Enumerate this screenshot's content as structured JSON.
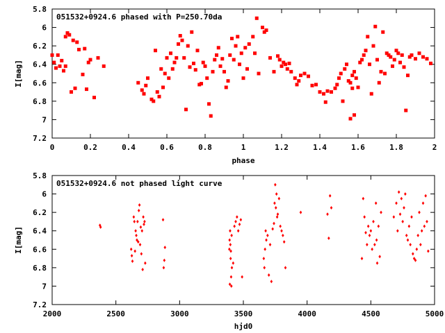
{
  "chart_data": [
    {
      "type": "scatter",
      "title": "051532+0924.6 phased with P=250.70da",
      "xlabel": "phase",
      "ylabel": "I[mag]",
      "xlim": [
        0,
        2
      ],
      "ylim": [
        7.2,
        5.8
      ],
      "y_inverted": true,
      "xticks": [
        0,
        0.2,
        0.4,
        0.6,
        0.8,
        1,
        1.2,
        1.4,
        1.6,
        1.8,
        2
      ],
      "xtick_labels": [
        "0",
        "0.2",
        "0.4",
        "0.6",
        "0.8",
        "1",
        "1.2",
        "1.4",
        "1.6",
        "1.8",
        "2"
      ],
      "yticks": [
        5.8,
        6,
        6.2,
        6.4,
        6.6,
        6.8,
        7,
        7.2
      ],
      "ytick_labels": [
        "5.8",
        "6",
        "6.2",
        "6.4",
        "6.6",
        "6.8",
        "7",
        "7.2"
      ],
      "grid": false,
      "marker_color": "#ff0000",
      "marker": "filled-square",
      "points": [
        [
          0.0,
          6.3
        ],
        [
          0.01,
          6.38
        ],
        [
          0.02,
          6.44
        ],
        [
          0.03,
          6.3
        ],
        [
          0.04,
          6.42
        ],
        [
          0.05,
          6.36
        ],
        [
          0.06,
          6.47
        ],
        [
          0.07,
          6.42
        ],
        [
          0.07,
          6.1
        ],
        [
          0.08,
          6.06
        ],
        [
          0.09,
          6.08
        ],
        [
          0.1,
          6.7
        ],
        [
          0.11,
          6.14
        ],
        [
          0.12,
          6.66
        ],
        [
          0.13,
          6.16
        ],
        [
          0.14,
          6.24
        ],
        [
          0.16,
          6.51
        ],
        [
          0.17,
          6.23
        ],
        [
          0.18,
          6.67
        ],
        [
          0.19,
          6.38
        ],
        [
          0.2,
          6.35
        ],
        [
          0.22,
          6.76
        ],
        [
          0.24,
          6.33
        ],
        [
          0.27,
          6.42
        ],
        [
          0.45,
          6.6
        ],
        [
          0.47,
          6.68
        ],
        [
          0.48,
          6.72
        ],
        [
          0.49,
          6.63
        ],
        [
          0.5,
          6.55
        ],
        [
          0.52,
          6.78
        ],
        [
          0.53,
          6.8
        ],
        [
          0.54,
          6.25
        ],
        [
          0.55,
          6.7
        ],
        [
          0.56,
          6.75
        ],
        [
          0.57,
          6.45
        ],
        [
          0.58,
          6.65
        ],
        [
          0.59,
          6.5
        ],
        [
          0.6,
          6.33
        ],
        [
          0.61,
          6.55
        ],
        [
          0.62,
          6.28
        ],
        [
          0.63,
          6.45
        ],
        [
          0.64,
          6.38
        ],
        [
          0.65,
          6.33
        ],
        [
          0.66,
          6.18
        ],
        [
          0.67,
          6.09
        ],
        [
          0.68,
          6.14
        ],
        [
          0.69,
          6.33
        ],
        [
          0.7,
          6.89
        ],
        [
          0.71,
          6.2
        ],
        [
          0.72,
          6.43
        ],
        [
          0.73,
          6.05
        ],
        [
          0.74,
          6.39
        ],
        [
          0.75,
          6.46
        ],
        [
          0.76,
          6.25
        ],
        [
          0.77,
          6.62
        ],
        [
          0.78,
          6.61
        ],
        [
          0.79,
          6.38
        ],
        [
          0.8,
          6.42
        ],
        [
          0.81,
          6.55
        ],
        [
          0.82,
          6.83
        ],
        [
          0.83,
          6.96
        ],
        [
          0.84,
          6.48
        ],
        [
          0.85,
          6.35
        ],
        [
          0.86,
          6.3
        ],
        [
          0.87,
          6.22
        ],
        [
          0.88,
          6.42
        ],
        [
          0.89,
          6.34
        ],
        [
          0.9,
          6.48
        ],
        [
          0.91,
          6.65
        ],
        [
          0.92,
          6.58
        ],
        [
          0.93,
          6.3
        ],
        [
          0.94,
          6.12
        ],
        [
          0.95,
          6.35
        ],
        [
          0.96,
          6.2
        ],
        [
          0.97,
          6.1
        ],
        [
          0.98,
          6.4
        ],
        [
          0.99,
          6.28
        ],
        [
          1.0,
          6.55
        ],
        [
          1.01,
          6.22
        ],
        [
          1.02,
          6.45
        ],
        [
          1.03,
          6.18
        ],
        [
          1.05,
          6.1
        ],
        [
          1.06,
          6.28
        ],
        [
          1.07,
          5.9
        ],
        [
          1.08,
          6.5
        ],
        [
          1.1,
          6.0
        ],
        [
          1.11,
          6.05
        ],
        [
          1.12,
          6.03
        ],
        [
          1.14,
          6.33
        ],
        [
          1.16,
          6.48
        ],
        [
          1.18,
          6.31
        ],
        [
          1.19,
          6.35
        ],
        [
          1.2,
          6.42
        ],
        [
          1.21,
          6.38
        ],
        [
          1.22,
          6.4
        ],
        [
          1.23,
          6.45
        ],
        [
          1.24,
          6.39
        ],
        [
          1.25,
          6.48
        ],
        [
          1.27,
          6.55
        ],
        [
          1.28,
          6.62
        ],
        [
          1.29,
          6.58
        ],
        [
          1.3,
          6.52
        ],
        [
          1.32,
          6.5
        ],
        [
          1.34,
          6.53
        ],
        [
          1.36,
          6.63
        ],
        [
          1.38,
          6.62
        ],
        [
          1.4,
          6.7
        ],
        [
          1.42,
          6.72
        ],
        [
          1.43,
          6.81
        ],
        [
          1.44,
          6.69
        ],
        [
          1.46,
          6.7
        ],
        [
          1.48,
          6.66
        ],
        [
          1.49,
          6.62
        ],
        [
          1.5,
          6.55
        ],
        [
          1.51,
          6.5
        ],
        [
          1.52,
          6.8
        ],
        [
          1.53,
          6.45
        ],
        [
          1.54,
          6.4
        ],
        [
          1.55,
          6.58
        ],
        [
          1.56,
          6.99
        ],
        [
          1.56,
          6.6
        ],
        [
          1.57,
          6.52
        ],
        [
          1.57,
          6.66
        ],
        [
          1.58,
          6.48
        ],
        [
          1.58,
          6.95
        ],
        [
          1.59,
          6.55
        ],
        [
          1.6,
          6.65
        ],
        [
          1.61,
          6.38
        ],
        [
          1.62,
          6.35
        ],
        [
          1.63,
          6.3
        ],
        [
          1.64,
          6.25
        ],
        [
          1.65,
          6.1
        ],
        [
          1.66,
          6.4
        ],
        [
          1.67,
          6.72
        ],
        [
          1.68,
          6.2
        ],
        [
          1.69,
          5.99
        ],
        [
          1.7,
          6.35
        ],
        [
          1.71,
          6.6
        ],
        [
          1.72,
          6.48
        ],
        [
          1.73,
          6.05
        ],
        [
          1.74,
          6.5
        ],
        [
          1.75,
          6.28
        ],
        [
          1.76,
          6.3
        ],
        [
          1.77,
          6.32
        ],
        [
          1.78,
          6.42
        ],
        [
          1.79,
          6.35
        ],
        [
          1.8,
          6.25
        ],
        [
          1.81,
          6.28
        ],
        [
          1.82,
          6.38
        ],
        [
          1.83,
          6.3
        ],
        [
          1.84,
          6.43
        ],
        [
          1.85,
          6.9
        ],
        [
          1.86,
          6.52
        ],
        [
          1.87,
          6.32
        ],
        [
          1.88,
          6.3
        ],
        [
          1.9,
          6.34
        ],
        [
          1.92,
          6.28
        ],
        [
          1.94,
          6.32
        ],
        [
          1.96,
          6.34
        ],
        [
          1.98,
          6.39
        ]
      ]
    },
    {
      "type": "scatter",
      "title": "051532+0924.6 not phased light curve",
      "xlabel": "hjd0",
      "ylabel": "I[mag]",
      "xlim": [
        2000,
        5000
      ],
      "ylim": [
        7.2,
        5.8
      ],
      "y_inverted": true,
      "xticks": [
        2000,
        2500,
        3000,
        3500,
        4000,
        4500,
        5000
      ],
      "xtick_labels": [
        "2000",
        "2500",
        "3000",
        "3500",
        "4000",
        "4500",
        "5000"
      ],
      "yticks": [
        5.8,
        6,
        6.2,
        6.4,
        6.6,
        6.8,
        7,
        7.2
      ],
      "ytick_labels": [
        "5.8",
        "6",
        "6.2",
        "6.4",
        "6.6",
        "6.8",
        "7",
        "7.2"
      ],
      "grid": false,
      "marker_color": "#ff0000",
      "marker": "filled-diamond",
      "points": [
        [
          2375,
          6.34
        ],
        [
          2380,
          6.36
        ],
        [
          2620,
          6.6
        ],
        [
          2625,
          6.67
        ],
        [
          2630,
          6.73
        ],
        [
          2640,
          6.25
        ],
        [
          2645,
          6.3
        ],
        [
          2650,
          6.62
        ],
        [
          2655,
          6.4
        ],
        [
          2660,
          6.45
        ],
        [
          2665,
          6.5
        ],
        [
          2670,
          6.3
        ],
        [
          2675,
          6.52
        ],
        [
          2680,
          6.18
        ],
        [
          2685,
          6.12
        ],
        [
          2690,
          6.55
        ],
        [
          2695,
          6.36
        ],
        [
          2700,
          6.65
        ],
        [
          2705,
          6.4
        ],
        [
          2710,
          6.82
        ],
        [
          2715,
          6.25
        ],
        [
          2720,
          6.33
        ],
        [
          2725,
          6.3
        ],
        [
          2730,
          6.75
        ],
        [
          2870,
          6.28
        ],
        [
          2875,
          6.8
        ],
        [
          2880,
          6.72
        ],
        [
          2885,
          6.58
        ],
        [
          3390,
          6.6
        ],
        [
          3392,
          6.5
        ],
        [
          3394,
          6.98
        ],
        [
          3396,
          6.4
        ],
        [
          3398,
          6.55
        ],
        [
          3400,
          6.7
        ],
        [
          3402,
          6.62
        ],
        [
          3404,
          6.9
        ],
        [
          3406,
          7.0
        ],
        [
          3408,
          6.45
        ],
        [
          3410,
          6.8
        ],
        [
          3420,
          6.75
        ],
        [
          3430,
          6.35
        ],
        [
          3440,
          6.3
        ],
        [
          3450,
          6.25
        ],
        [
          3460,
          6.4
        ],
        [
          3470,
          6.33
        ],
        [
          3480,
          6.28
        ],
        [
          3490,
          6.9
        ],
        [
          3660,
          6.7
        ],
        [
          3665,
          6.8
        ],
        [
          3670,
          6.6
        ],
        [
          3675,
          6.4
        ],
        [
          3680,
          6.5
        ],
        [
          3690,
          6.45
        ],
        [
          3700,
          6.88
        ],
        [
          3710,
          6.55
        ],
        [
          3720,
          6.95
        ],
        [
          3730,
          6.38
        ],
        [
          3740,
          6.32
        ],
        [
          3745,
          6.1
        ],
        [
          3750,
          5.9
        ],
        [
          3755,
          6.15
        ],
        [
          3760,
          6.0
        ],
        [
          3765,
          6.25
        ],
        [
          3770,
          6.22
        ],
        [
          3780,
          6.05
        ],
        [
          3790,
          6.35
        ],
        [
          3800,
          6.4
        ],
        [
          3810,
          6.45
        ],
        [
          3820,
          6.52
        ],
        [
          3830,
          6.8
        ],
        [
          3950,
          6.2
        ],
        [
          4160,
          6.22
        ],
        [
          4170,
          6.48
        ],
        [
          4180,
          6.02
        ],
        [
          4190,
          6.15
        ],
        [
          4430,
          6.7
        ],
        [
          4440,
          6.05
        ],
        [
          4450,
          6.25
        ],
        [
          4460,
          6.42
        ],
        [
          4470,
          6.55
        ],
        [
          4480,
          6.35
        ],
        [
          4490,
          6.45
        ],
        [
          4500,
          6.4
        ],
        [
          4510,
          6.6
        ],
        [
          4520,
          6.3
        ],
        [
          4530,
          6.55
        ],
        [
          4540,
          6.1
        ],
        [
          4545,
          6.5
        ],
        [
          4550,
          6.75
        ],
        [
          4560,
          6.35
        ],
        [
          4570,
          6.68
        ],
        [
          4580,
          6.2
        ],
        [
          4680,
          6.25
        ],
        [
          4700,
          6.1
        ],
        [
          4710,
          6.4
        ],
        [
          4720,
          5.98
        ],
        [
          4730,
          6.22
        ],
        [
          4740,
          6.05
        ],
        [
          4750,
          6.3
        ],
        [
          4760,
          6.15
        ],
        [
          4770,
          6.0
        ],
        [
          4780,
          6.45
        ],
        [
          4790,
          6.5
        ],
        [
          4800,
          6.35
        ],
        [
          4810,
          6.55
        ],
        [
          4820,
          6.25
        ],
        [
          4830,
          6.65
        ],
        [
          4840,
          6.7
        ],
        [
          4850,
          6.72
        ],
        [
          4860,
          6.6
        ],
        [
          4870,
          6.45
        ],
        [
          4880,
          6.2
        ],
        [
          4890,
          6.55
        ],
        [
          4900,
          6.4
        ],
        [
          4910,
          6.1
        ],
        [
          4920,
          6.35
        ],
        [
          4930,
          6.02
        ],
        [
          4940,
          6.3
        ],
        [
          4950,
          6.62
        ]
      ]
    }
  ]
}
